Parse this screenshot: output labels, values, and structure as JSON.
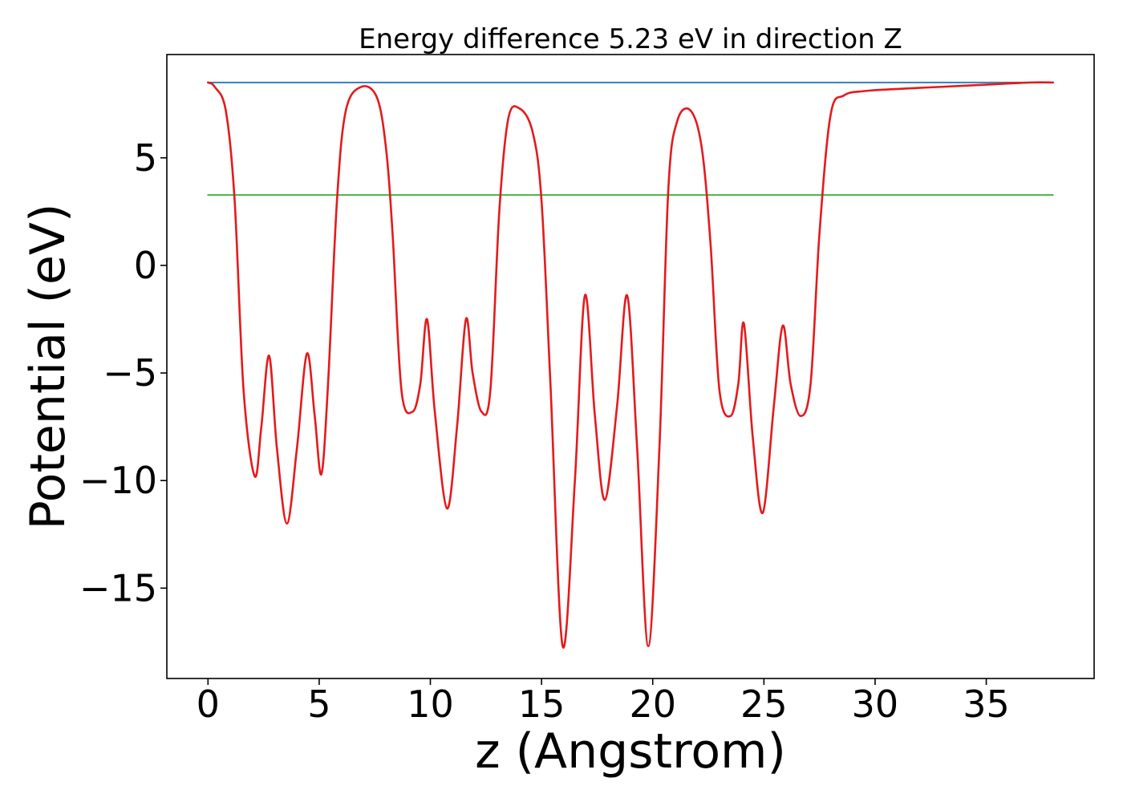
{
  "chart_data": {
    "type": "line",
    "title": "Energy difference 5.23 eV in direction Z",
    "xlabel": "z (Angstrom)",
    "ylabel": "Potential (eV)",
    "xlim": [
      -1.85,
      39.85
    ],
    "ylim": [
      -19.2,
      9.8
    ],
    "xticks": [
      0,
      5,
      10,
      15,
      20,
      25,
      30,
      35
    ],
    "yticks": [
      -15,
      -10,
      -5,
      0,
      5
    ],
    "xtick_labels": [
      "0",
      "5",
      "10",
      "15",
      "20",
      "25",
      "30",
      "35"
    ],
    "ytick_labels": [
      "−15",
      "−10",
      "−5",
      "0",
      "5"
    ],
    "grid": false,
    "colors": {
      "potential": "#e41a1c",
      "vacuum": "#377eb8",
      "fermi": "#4daf4a"
    },
    "series": [
      {
        "key": "potential",
        "x": [
          0,
          0.3,
          0.8,
          1.2,
          1.6,
          2.1,
          2.4,
          2.75,
          3.1,
          3.55,
          4.0,
          4.45,
          4.8,
          5.1,
          5.4,
          5.8,
          6.2,
          6.9,
          7.6,
          8.0,
          8.3,
          8.7,
          9.2,
          9.55,
          9.85,
          10.2,
          10.75,
          11.2,
          11.6,
          11.9,
          12.3,
          12.7,
          13.1,
          13.5,
          14.0,
          14.6,
          15.0,
          15.4,
          15.95,
          16.5,
          16.95,
          17.4,
          17.85,
          18.4,
          18.85,
          19.3,
          19.8,
          20.3,
          20.7,
          21.1,
          21.7,
          22.2,
          22.6,
          23.0,
          23.5,
          23.85,
          24.1,
          24.5,
          24.95,
          25.45,
          25.85,
          26.2,
          26.65,
          27.1,
          27.5,
          28.0,
          28.6,
          29.5,
          31.0,
          33.0,
          35.0,
          37.0,
          38.0
        ],
        "y": [
          8.5,
          8.3,
          7.2,
          3.0,
          -5.8,
          -9.8,
          -7.5,
          -4.2,
          -8.5,
          -12.0,
          -8.5,
          -4.1,
          -7.0,
          -9.7,
          -5.5,
          3.0,
          7.2,
          8.3,
          7.8,
          5.5,
          1.5,
          -5.8,
          -6.8,
          -5.5,
          -2.5,
          -6.8,
          -11.3,
          -7.5,
          -2.5,
          -5.0,
          -6.8,
          -5.8,
          2.5,
          6.8,
          7.3,
          6.2,
          3.0,
          -5.5,
          -17.7,
          -10.0,
          -1.4,
          -7.0,
          -10.9,
          -6.5,
          -1.4,
          -8.5,
          -17.7,
          -8.5,
          3.5,
          6.7,
          7.2,
          5.5,
          1.0,
          -5.8,
          -7.0,
          -5.5,
          -2.7,
          -8.0,
          -11.5,
          -6.5,
          -2.8,
          -5.5,
          -7.0,
          -5.5,
          1.5,
          7.0,
          7.9,
          8.1,
          8.2,
          8.3,
          8.4,
          8.5,
          8.5
        ]
      },
      {
        "key": "vacuum",
        "x": [
          0,
          38
        ],
        "y": [
          8.5,
          8.5
        ]
      },
      {
        "key": "fermi",
        "x": [
          0,
          38
        ],
        "y": [
          3.27,
          3.27
        ]
      }
    ]
  }
}
